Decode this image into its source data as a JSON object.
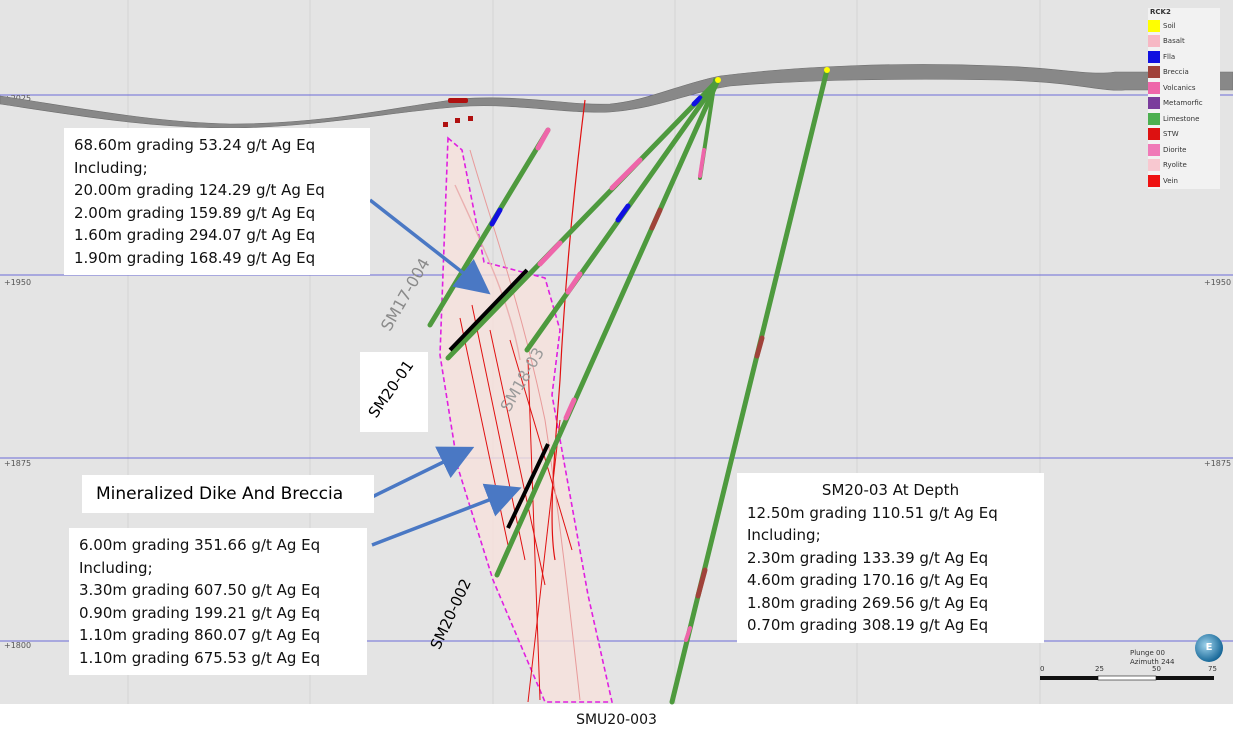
{
  "elevation_labels": [
    "+2025",
    "+1950",
    "+1875",
    "+1800"
  ],
  "legend": {
    "title": "RCK2",
    "items": [
      {
        "label": "Soil",
        "color": "#ffff00"
      },
      {
        "label": "Basalt",
        "color": "#f7b8c4"
      },
      {
        "label": "Flla",
        "color": "#1010e0"
      },
      {
        "label": "Breccia",
        "color": "#a0423a"
      },
      {
        "label": "Volcanics",
        "color": "#ee66aa"
      },
      {
        "label": "Metamorfic",
        "color": "#7a3c9c"
      },
      {
        "label": "Limestone",
        "color": "#4caf50"
      },
      {
        "label": "STW",
        "color": "#dd1111"
      },
      {
        "label": "Diorite",
        "color": "#f07ab8"
      },
      {
        "label": "Ryolite",
        "color": "#f8c8d0"
      },
      {
        "label": "Vein",
        "color": "#ee1111"
      }
    ]
  },
  "box_sm2001": {
    "lines": [
      "68.60m grading 53.24 g/t Ag Eq",
      "Including;",
      "20.00m grading 124.29 g/t Ag Eq",
      "2.00m grading 159.89 g/t Ag Eq",
      "1.60m grading 294.07 g/t Ag Eq",
      "1.90m grading 168.49 g/t Ag Eq"
    ]
  },
  "box_depth": {
    "title": "SM20-03 At Depth",
    "lines": [
      "12.50m grading 110.51 g/t Ag Eq",
      "Including;",
      "2.30m grading 133.39 g/t Ag Eq",
      "4.60m grading 170.16 g/t Ag Eq",
      "1.80m grading 269.56 g/t Ag Eq",
      "0.70m grading 308.19 g/t Ag Eq"
    ]
  },
  "box_sm20002": {
    "lines": [
      "6.00m grading 351.66 g/t Ag Eq",
      "Including;",
      "3.30m grading 607.50 g/t Ag Eq",
      "0.90m grading 199.21 g/t Ag Eq",
      "1.10m grading 860.07 g/t Ag Eq",
      "1.10m grading 675.53 g/t Ag Eq"
    ]
  },
  "feature_label": "Mineralized Dike And Breccia",
  "hole_labels": {
    "sm17_004": "SM17-004",
    "sm20_01": "SM20-01",
    "sm18_03": "SM18-03",
    "sm20_002": "SM20-002",
    "smu20_003": "SMU20-003"
  },
  "orientation": {
    "plunge": "Plunge 00",
    "azimuth": "Azimuth 244",
    "compass": "E"
  },
  "scale": {
    "ticks": [
      "0",
      "25",
      "50",
      "75"
    ]
  }
}
